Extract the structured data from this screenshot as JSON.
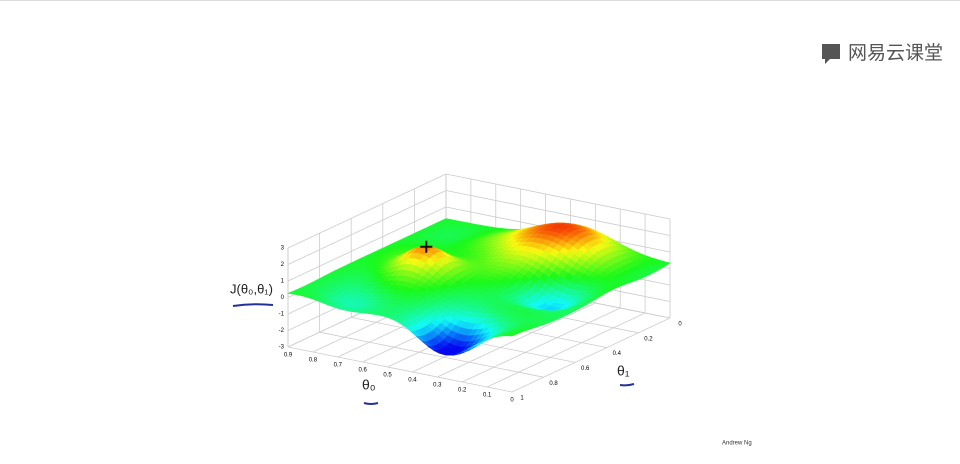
{
  "watermark": "网易云课堂",
  "plot": {
    "z_label": "J(θ₀,θ₁)",
    "x_label": "θ₀",
    "y_label": "θ₁",
    "z_ticks": [
      "3",
      "2",
      "1",
      "0",
      "-1",
      "-2",
      "-3"
    ],
    "x_ticks": [
      "0.9",
      "0.8",
      "0.7",
      "0.6",
      "0.5",
      "0.4",
      "0.3",
      "0.2",
      "0.1",
      "0"
    ],
    "y_ticks": [
      "0",
      "0.2",
      "0.4",
      "0.6",
      "0.8",
      "1"
    ]
  },
  "credit": "Andrew Ng"
}
